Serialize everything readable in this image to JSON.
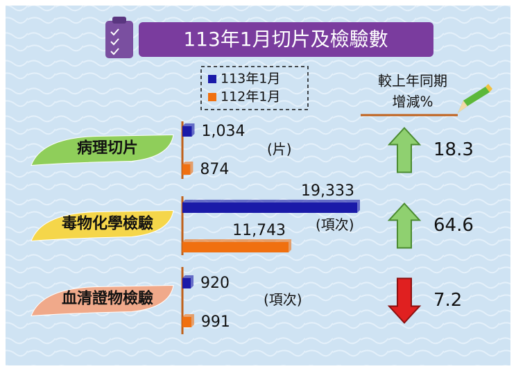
{
  "chart_data": {
    "type": "bar",
    "orientation": "horizontal",
    "title": "113年1月切片及檢驗數",
    "categories": [
      "病理切片",
      "毒物化學檢驗",
      "血清證物檢驗"
    ],
    "category_colors": [
      "#8fce5a",
      "#f5d64a",
      "#f0a98a"
    ],
    "units": [
      "(片)",
      "(項次)",
      "(項次)"
    ],
    "series": [
      {
        "name": "113年1月",
        "color": "#1a1aa8",
        "values": [
          1034,
          19333,
          920
        ],
        "value_labels": [
          "1,034",
          "19,333",
          "920"
        ]
      },
      {
        "name": "112年1月",
        "color": "#f07010",
        "values": [
          874,
          11743,
          991
        ],
        "value_labels": [
          "874",
          "11,743",
          "991"
        ]
      }
    ],
    "change_title": [
      "較上年同期",
      "增減%"
    ],
    "changes": [
      18.3,
      64.6,
      -7.2
    ],
    "change_labels": [
      "18.3",
      "64.6",
      "7.2"
    ],
    "change_colors": {
      "up": "#8fd070",
      "down": "#e02020"
    }
  }
}
